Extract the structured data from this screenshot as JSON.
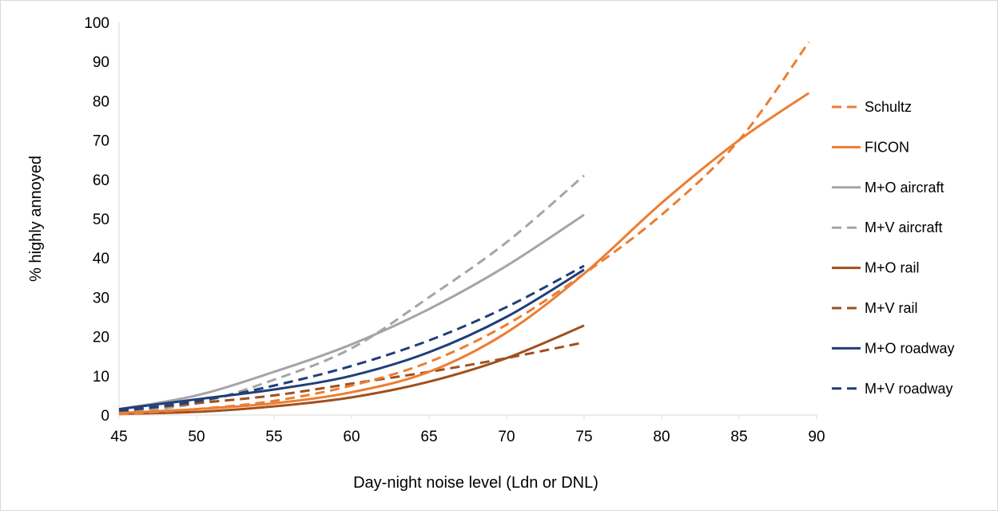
{
  "chart_data": {
    "type": "line",
    "title": "",
    "xlabel": "Day-night noise level (Ldn or DNL)",
    "ylabel": "% highly annoyed",
    "xlim": [
      45,
      90
    ],
    "ylim": [
      0,
      100
    ],
    "x_ticks": [
      "45",
      "50",
      "55",
      "60",
      "65",
      "70",
      "75",
      "80",
      "85",
      "90"
    ],
    "y_ticks": [
      "0",
      "10",
      "20",
      "30",
      "40",
      "50",
      "60",
      "70",
      "80",
      "90",
      "100"
    ],
    "grid": {
      "x": false,
      "y": false
    },
    "legend_position": "right",
    "series": [
      {
        "name": "Schultz",
        "color": "#ED7D31",
        "dash": true,
        "points": [
          [
            45,
            0.2
          ],
          [
            50,
            1.5
          ],
          [
            55,
            3.6
          ],
          [
            60,
            7.5
          ],
          [
            65,
            13.5
          ],
          [
            70,
            23
          ],
          [
            75,
            36
          ],
          [
            80,
            51
          ],
          [
            85,
            70
          ],
          [
            89.5,
            95
          ]
        ]
      },
      {
        "name": "FICON",
        "color": "#ED7D31",
        "dash": false,
        "points": [
          [
            45,
            0.5
          ],
          [
            50,
            1.5
          ],
          [
            55,
            3
          ],
          [
            60,
            5.8
          ],
          [
            65,
            11
          ],
          [
            70,
            21
          ],
          [
            75,
            36
          ],
          [
            80,
            54
          ],
          [
            85,
            70
          ],
          [
            89.5,
            82
          ]
        ]
      },
      {
        "name": "M+O aircraft",
        "color": "#A5A5A5",
        "dash": false,
        "points": [
          [
            45,
            1.5
          ],
          [
            50,
            5
          ],
          [
            55,
            11
          ],
          [
            60,
            18
          ],
          [
            65,
            27
          ],
          [
            70,
            38
          ],
          [
            75,
            51
          ]
        ]
      },
      {
        "name": "M+V aircraft",
        "color": "#A5A5A5",
        "dash": true,
        "points": [
          [
            45,
            0.5
          ],
          [
            50,
            3
          ],
          [
            55,
            9
          ],
          [
            60,
            17
          ],
          [
            65,
            30
          ],
          [
            70,
            44
          ],
          [
            75,
            61
          ]
        ]
      },
      {
        "name": "M+O rail",
        "color": "#A0501E",
        "dash": false,
        "points": [
          [
            45,
            0.3
          ],
          [
            50,
            0.8
          ],
          [
            55,
            2.2
          ],
          [
            60,
            4.5
          ],
          [
            65,
            8.5
          ],
          [
            70,
            14.5
          ],
          [
            75,
            22.8
          ]
        ]
      },
      {
        "name": "M+V rail",
        "color": "#A0501E",
        "dash": true,
        "points": [
          [
            45,
            1
          ],
          [
            50,
            3
          ],
          [
            55,
            5
          ],
          [
            60,
            8
          ],
          [
            65,
            11
          ],
          [
            70,
            14.5
          ],
          [
            75,
            18.5
          ]
        ]
      },
      {
        "name": "M+O roadway",
        "color": "#203F7A",
        "dash": false,
        "points": [
          [
            45,
            1.5
          ],
          [
            50,
            4
          ],
          [
            55,
            6.5
          ],
          [
            60,
            10
          ],
          [
            65,
            16
          ],
          [
            70,
            25
          ],
          [
            75,
            37
          ]
        ]
      },
      {
        "name": "M+V roadway",
        "color": "#203F7A",
        "dash": true,
        "points": [
          [
            45,
            1
          ],
          [
            50,
            3.5
          ],
          [
            55,
            7.5
          ],
          [
            60,
            12.5
          ],
          [
            65,
            19
          ],
          [
            70,
            27.5
          ],
          [
            75,
            38
          ]
        ]
      }
    ]
  }
}
